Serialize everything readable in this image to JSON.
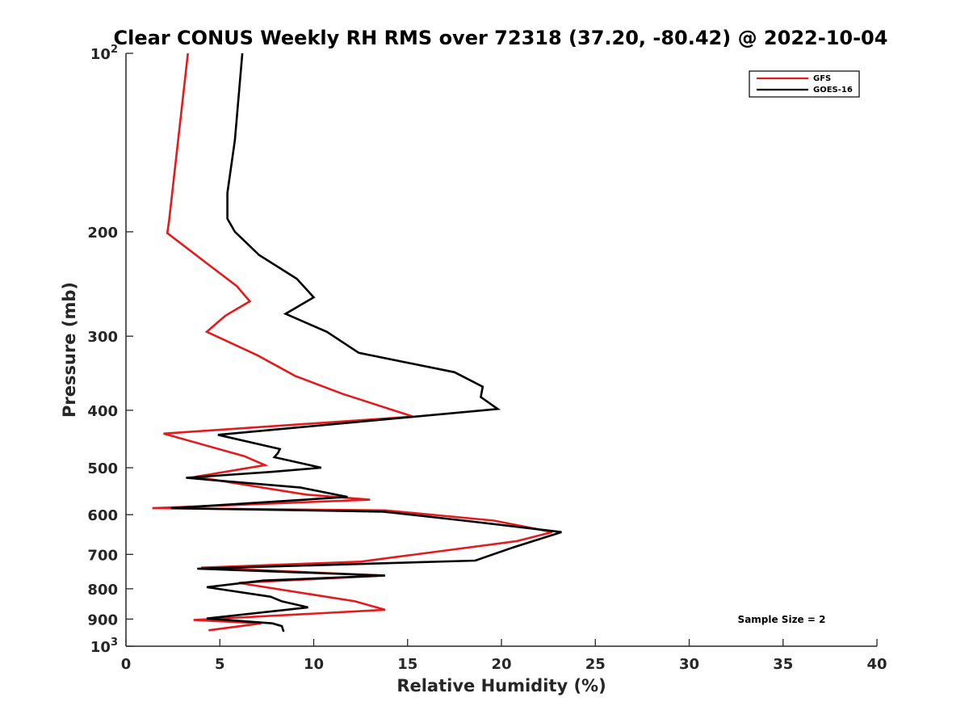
{
  "chart_data": {
    "type": "line",
    "title": "Clear CONUS Weekly RH RMS over 72318 (37.20, -80.42) @ 2022-10-04",
    "xlabel": "Relative Humidity (%)",
    "ylabel": "Pressure (mb)",
    "xlim": [
      0,
      40
    ],
    "ylim": [
      100,
      1000
    ],
    "yscale": "log",
    "y_reversed": true,
    "x_ticks": [
      "0",
      "5",
      "10",
      "15",
      "20",
      "25",
      "30",
      "35",
      "40"
    ],
    "y_ticks": [
      {
        "value": 100,
        "base": "10",
        "exp": "2"
      },
      {
        "value": 200,
        "label": "200"
      },
      {
        "value": 300,
        "label": "300"
      },
      {
        "value": 400,
        "label": "400"
      },
      {
        "value": 500,
        "label": "500"
      },
      {
        "value": 600,
        "label": "600"
      },
      {
        "value": 700,
        "label": "700"
      },
      {
        "value": 800,
        "label": "800"
      },
      {
        "value": 900,
        "label": "900"
      },
      {
        "value": 1000,
        "base": "10",
        "exp": "3"
      }
    ],
    "legend_position": "top-right",
    "grid": false,
    "annotation": "Sample Size = 2",
    "series": [
      {
        "name": "GFS",
        "color": "#e41a1c",
        "x": [
          3.3,
          2.3,
          2.2,
          4.3,
          5.9,
          6.6,
          5.3,
          4.3,
          7.0,
          9.0,
          11.5,
          15.3,
          2.0,
          6.3,
          7.4,
          3.7,
          9.6,
          13.0,
          1.4,
          13.8,
          19.6,
          22.7,
          20.8,
          12.5,
          4.0,
          13.8,
          6.0,
          12.2,
          13.8,
          3.6,
          7.2,
          4.4
        ],
        "y": [
          100,
          191,
          201,
          226,
          247,
          262,
          277,
          295,
          323,
          350,
          375,
          410,
          438,
          478,
          495,
          518,
          555,
          566,
          585,
          590,
          614,
          642,
          665,
          720,
          737,
          760,
          782,
          840,
          868,
          903,
          915,
          940
        ]
      },
      {
        "name": "GOES-16",
        "color": "#000000",
        "x": [
          6.2,
          5.8,
          5.4,
          5.4,
          5.8,
          7.1,
          9.1,
          10.0,
          8.5,
          10.7,
          12.4,
          17.5,
          19.0,
          18.9,
          19.8,
          4.9,
          8.2,
          8.1,
          7.9,
          10.4,
          7.8,
          3.2,
          9.3,
          11.8,
          2.4,
          13.7,
          18.2,
          23.2,
          20.7,
          18.6,
          3.8,
          13.8,
          7.3,
          4.3,
          7.7,
          8.3,
          9.7,
          4.3,
          7.8,
          8.3,
          8.4
        ],
        "y": [
          100,
          140,
          172,
          190,
          200,
          219,
          240,
          258,
          275,
          295,
          320,
          345,
          365,
          380,
          398,
          440,
          465,
          472,
          480,
          500,
          508,
          520,
          540,
          560,
          585,
          593,
          615,
          642,
          680,
          717,
          740,
          760,
          775,
          795,
          825,
          840,
          860,
          898,
          915,
          925,
          945
        ]
      }
    ]
  }
}
